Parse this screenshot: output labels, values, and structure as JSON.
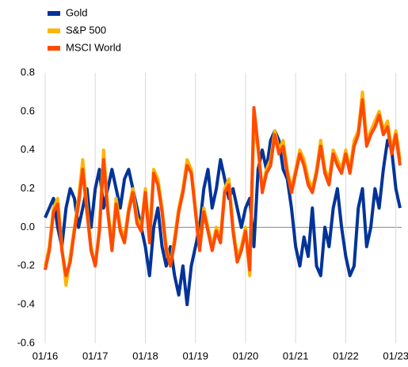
{
  "chart_data": {
    "type": "line",
    "x": [
      "01/16",
      "02/16",
      "03/16",
      "04/16",
      "05/16",
      "06/16",
      "07/16",
      "08/16",
      "09/16",
      "10/16",
      "11/16",
      "12/16",
      "01/17",
      "02/17",
      "03/17",
      "04/17",
      "05/17",
      "06/17",
      "07/17",
      "08/17",
      "09/17",
      "10/17",
      "11/17",
      "12/17",
      "01/18",
      "02/18",
      "03/18",
      "04/18",
      "05/18",
      "06/18",
      "07/18",
      "08/18",
      "09/18",
      "10/18",
      "11/18",
      "12/18",
      "01/19",
      "02/19",
      "03/19",
      "04/19",
      "05/19",
      "06/19",
      "07/19",
      "08/19",
      "09/19",
      "10/19",
      "11/19",
      "12/19",
      "01/20",
      "02/20",
      "03/20",
      "04/20",
      "05/20",
      "06/20",
      "07/20",
      "08/20",
      "09/20",
      "10/20",
      "11/20",
      "12/20",
      "01/21",
      "02/21",
      "03/21",
      "04/21",
      "05/21",
      "06/21",
      "07/21",
      "08/21",
      "09/21",
      "10/21",
      "11/21",
      "12/21",
      "01/22",
      "02/22",
      "03/22",
      "04/22",
      "05/22",
      "06/22",
      "07/22",
      "08/22",
      "09/22",
      "10/22",
      "11/22",
      "12/22",
      "01/23",
      "02/23"
    ],
    "xticks": [
      "01/16",
      "01/17",
      "01/18",
      "01/19",
      "01/20",
      "01/21",
      "01/22",
      "01/23"
    ],
    "series": [
      {
        "name": "Gold",
        "color": "#003399",
        "values": [
          0.05,
          0.1,
          0.15,
          0.0,
          -0.1,
          0.1,
          0.2,
          0.15,
          0.0,
          0.1,
          0.2,
          0.0,
          0.2,
          0.3,
          0.1,
          0.2,
          0.3,
          0.2,
          0.1,
          0.25,
          0.3,
          0.2,
          0.1,
          0.0,
          -0.1,
          -0.25,
          0.0,
          0.1,
          -0.1,
          -0.2,
          -0.1,
          -0.25,
          -0.35,
          -0.2,
          -0.4,
          -0.2,
          -0.1,
          0.0,
          0.2,
          0.3,
          0.1,
          0.2,
          0.35,
          0.25,
          0.15,
          0.2,
          0.1,
          0.0,
          0.1,
          0.15,
          -0.1,
          0.3,
          0.4,
          0.3,
          0.45,
          0.5,
          0.45,
          0.3,
          0.25,
          0.1,
          -0.1,
          -0.2,
          -0.05,
          -0.15,
          0.1,
          -0.2,
          -0.25,
          0.0,
          -0.1,
          0.1,
          0.2,
          0.0,
          -0.15,
          -0.25,
          -0.2,
          0.1,
          0.2,
          -0.1,
          0.0,
          0.2,
          0.1,
          0.3,
          0.45,
          0.4,
          0.2,
          0.1
        ]
      },
      {
        "name": "S&P 500",
        "color": "#ffb400",
        "values": [
          -0.2,
          -0.1,
          0.1,
          0.15,
          -0.1,
          -0.3,
          -0.15,
          0.0,
          0.15,
          0.35,
          0.1,
          -0.1,
          -0.2,
          0.0,
          0.4,
          0.1,
          -0.1,
          0.15,
          0.0,
          -0.05,
          0.1,
          0.2,
          0.05,
          0.0,
          0.2,
          -0.05,
          0.3,
          0.25,
          0.1,
          -0.1,
          -0.2,
          -0.05,
          0.1,
          0.2,
          0.35,
          0.3,
          0.1,
          -0.1,
          0.1,
          0.0,
          -0.1,
          0.0,
          -0.05,
          0.2,
          0.25,
          0.0,
          -0.15,
          -0.1,
          0.0,
          -0.25,
          0.55,
          0.4,
          0.2,
          0.3,
          0.35,
          0.5,
          0.4,
          0.45,
          0.3,
          0.2,
          0.3,
          0.4,
          0.35,
          0.25,
          0.2,
          0.3,
          0.45,
          0.3,
          0.25,
          0.4,
          0.35,
          0.3,
          0.4,
          0.3,
          0.45,
          0.5,
          0.7,
          0.45,
          0.5,
          0.55,
          0.6,
          0.5,
          0.55,
          0.4,
          0.5,
          0.35
        ]
      },
      {
        "name": "MSCI World",
        "color": "#ff4b00",
        "values": [
          -0.22,
          -0.12,
          0.08,
          0.12,
          -0.12,
          -0.25,
          -0.18,
          -0.02,
          0.12,
          0.3,
          0.08,
          -0.12,
          -0.2,
          -0.02,
          0.35,
          0.08,
          -0.12,
          0.12,
          -0.02,
          -0.08,
          0.08,
          0.18,
          0.02,
          -0.02,
          0.18,
          -0.08,
          0.28,
          0.22,
          0.08,
          -0.12,
          -0.2,
          -0.08,
          0.08,
          0.18,
          0.32,
          0.28,
          0.08,
          -0.12,
          0.08,
          -0.02,
          -0.12,
          -0.02,
          -0.08,
          0.18,
          0.22,
          -0.02,
          -0.18,
          -0.12,
          -0.02,
          -0.22,
          0.62,
          0.42,
          0.18,
          0.28,
          0.32,
          0.48,
          0.38,
          0.42,
          0.28,
          0.18,
          0.28,
          0.38,
          0.32,
          0.22,
          0.18,
          0.28,
          0.42,
          0.28,
          0.22,
          0.38,
          0.32,
          0.28,
          0.38,
          0.28,
          0.42,
          0.48,
          0.66,
          0.42,
          0.48,
          0.52,
          0.58,
          0.48,
          0.52,
          0.38,
          0.48,
          0.32
        ]
      }
    ],
    "ylim": [
      -0.6,
      0.8
    ],
    "yticks": [
      {
        "value": -0.6,
        "label": "-0.6"
      },
      {
        "value": -0.4,
        "label": "-0.4"
      },
      {
        "value": -0.2,
        "label": "-0.2"
      },
      {
        "value": 0,
        "label": "0.0"
      },
      {
        "value": 0.2,
        "label": "0.2"
      },
      {
        "value": 0.4,
        "label": "0.4"
      },
      {
        "value": 0.6,
        "label": "0.6"
      },
      {
        "value": 0.8,
        "label": "0.8"
      }
    ],
    "grid": true,
    "legend": "top-left"
  }
}
